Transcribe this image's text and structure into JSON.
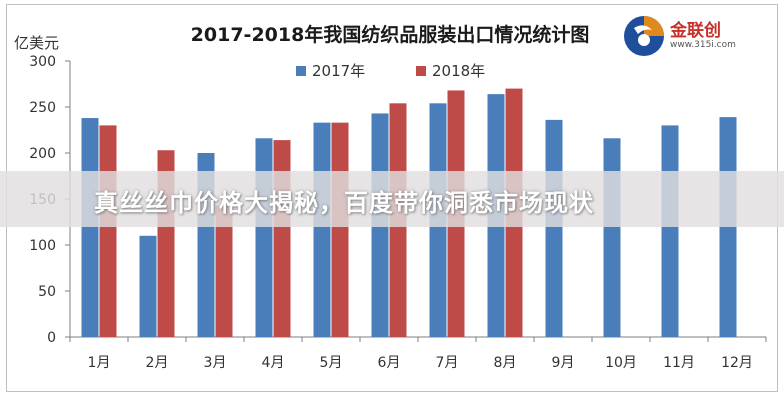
{
  "chart_data": {
    "type": "bar",
    "title": "2017-2018年我国纺织品服装出口情况统计图",
    "ylabel": "亿美元",
    "xlabel": "",
    "ylim": [
      0,
      300
    ],
    "yticks": [
      0,
      50,
      100,
      150,
      200,
      250,
      300
    ],
    "grid": false,
    "legend_position": "top",
    "categories": [
      "1月",
      "2月",
      "3月",
      "4月",
      "5月",
      "6月",
      "7月",
      "8月",
      "9月",
      "10月",
      "11月",
      "12月"
    ],
    "series": [
      {
        "name": "2017年",
        "color": "#4a7ebb",
        "values": [
          238,
          110,
          200,
          216,
          233,
          243,
          254,
          264,
          236,
          216,
          230,
          239
        ]
      },
      {
        "name": "2018年",
        "color": "#be4b48",
        "values": [
          230,
          203,
          143,
          214,
          233,
          254,
          268,
          270,
          null,
          null,
          null,
          null
        ]
      }
    ]
  },
  "logo": {
    "name": "金联创",
    "url": "www.315i.com"
  },
  "banner": {
    "text": "真丝丝巾价格大揭秘，百度带你洞悉市场现状"
  }
}
